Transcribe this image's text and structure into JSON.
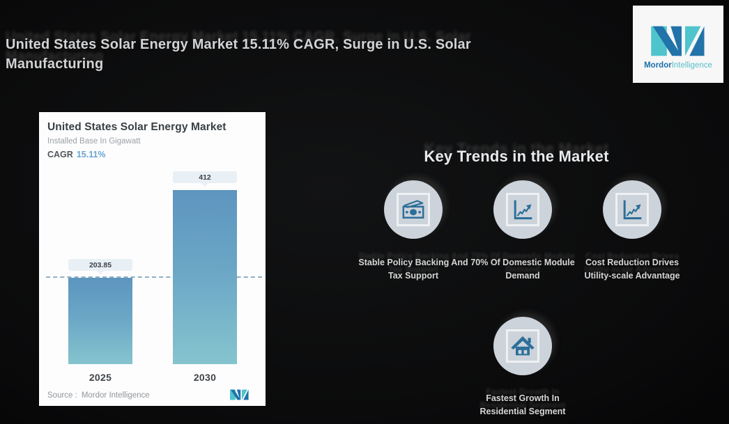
{
  "header": {
    "title_line1": "United States Solar Energy Market 15.11% CAGR, Surge in U.S. Solar",
    "title_line2": "Manufacturing"
  },
  "brand": {
    "primary": "Mordor",
    "secondary": "Intelligence"
  },
  "card": {
    "title": "United States Solar Energy Market",
    "subtitle": "Installed Base In Gigawatt",
    "cagr_label": "CAGR",
    "cagr_value": "15.11%",
    "source_label": "Source :",
    "source_value": "Mordor Intelligence"
  },
  "chart_data": {
    "type": "bar",
    "title": "United States Solar Energy Market",
    "ylabel": "Installed Base In Gigawatt",
    "cagr_percent": 15.11,
    "categories": [
      "2025",
      "2030"
    ],
    "values": [
      203.85,
      412
    ],
    "value_labels": [
      "203.85",
      "412"
    ],
    "reference_line_value": 203.85,
    "ylim": [
      0,
      430
    ],
    "grid": "off",
    "legend": "none",
    "bar_gradient_top": "#5d95bf",
    "bar_gradient_bottom": "#85c4ce",
    "reference_line_style": "dashed",
    "reference_line_color": "#8fafc5"
  },
  "key_trends": {
    "heading": "Key Trends in the Market",
    "items": [
      {
        "icon": "banknotes-icon",
        "label": "Stable Policy Backing And Tax Support"
      },
      {
        "icon": "line-chart-icon",
        "label": "70% Of Domestic Module Demand"
      },
      {
        "icon": "line-chart-icon",
        "label": "Cost Reduction Drives Utility-scale Advantage"
      },
      {
        "icon": "house-icon",
        "label": "Fastest Growth In Residential Segment"
      }
    ]
  },
  "colors": {
    "background": "#0c0c0d",
    "card_background": "#fdfdfd",
    "accent_dark_blue": "#2173a9",
    "accent_teal": "#4fc4cc",
    "icon_blue": "#2d6f99",
    "circle_gray": "#ccd3da",
    "cagr_value_blue": "#67a4d3"
  }
}
